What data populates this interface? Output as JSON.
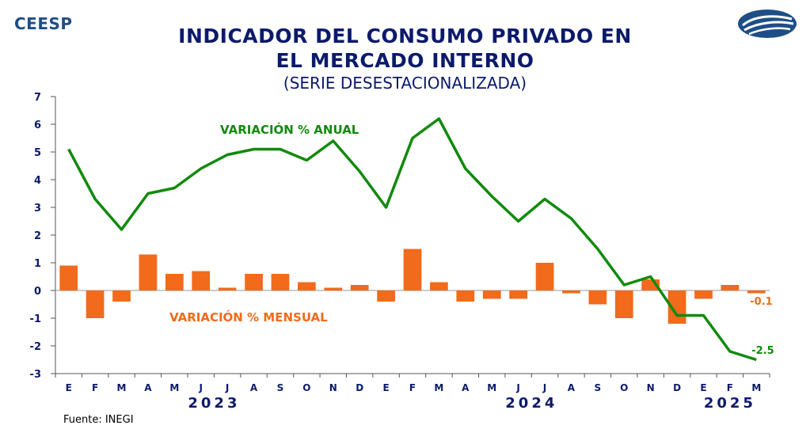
{
  "header": {
    "brand": "CEESP",
    "title_line1": "INDICADOR DEL CONSUMO PRIVADO EN",
    "title_line2": "EL MERCADO INTERNO",
    "subtitle": "(SERIE DESESTACIONALIZADA)"
  },
  "source": "Fuente: INEGI",
  "colors": {
    "annual_line": "#118a0c",
    "monthly_bars": "#f26a1b",
    "title": "#0b1a6b",
    "brand": "#1f4e87"
  },
  "chart_data": {
    "type": "bar",
    "title": "INDICADOR DEL CONSUMO PRIVADO EN EL MERCADO INTERNO",
    "subtitle": "(SERIE DESESTACIONALIZADA)",
    "categories": [
      "E",
      "F",
      "M",
      "A",
      "M",
      "J",
      "J",
      "A",
      "S",
      "O",
      "N",
      "D",
      "E",
      "F",
      "M",
      "A",
      "M",
      "J",
      "J",
      "A",
      "S",
      "O",
      "N",
      "D",
      "E",
      "F",
      "M"
    ],
    "years": [
      {
        "label": "2023",
        "start": 0,
        "end": 11
      },
      {
        "label": "2024",
        "start": 12,
        "end": 23
      },
      {
        "label": "2025",
        "start": 24,
        "end": 26
      }
    ],
    "ylim": [
      -3,
      7
    ],
    "yticks": [
      -3,
      -2,
      -1,
      0,
      1,
      2,
      3,
      4,
      5,
      6,
      7
    ],
    "grid": false,
    "series": [
      {
        "name": "VARIACIÓN % ANUAL",
        "type": "line",
        "values": [
          5.1,
          3.3,
          2.2,
          3.5,
          3.7,
          4.4,
          4.9,
          5.1,
          5.1,
          4.7,
          5.4,
          4.3,
          3.0,
          5.5,
          6.2,
          4.4,
          3.4,
          2.5,
          3.3,
          2.6,
          1.5,
          0.2,
          0.5,
          -0.9,
          -0.9,
          -2.2,
          -2.5
        ]
      },
      {
        "name": "VARIACIÓN % MENSUAL",
        "type": "bar",
        "values": [
          0.9,
          -1.0,
          -0.4,
          1.3,
          0.6,
          0.7,
          0.1,
          0.6,
          0.6,
          0.3,
          0.1,
          0.2,
          -0.4,
          1.5,
          0.3,
          -0.4,
          -0.3,
          -0.3,
          1.0,
          -0.1,
          -0.5,
          -1.0,
          0.4,
          -1.2,
          -0.3,
          0.2,
          -0.1
        ]
      }
    ],
    "end_labels": {
      "annual": "-2.5",
      "monthly": "-0.1"
    }
  }
}
